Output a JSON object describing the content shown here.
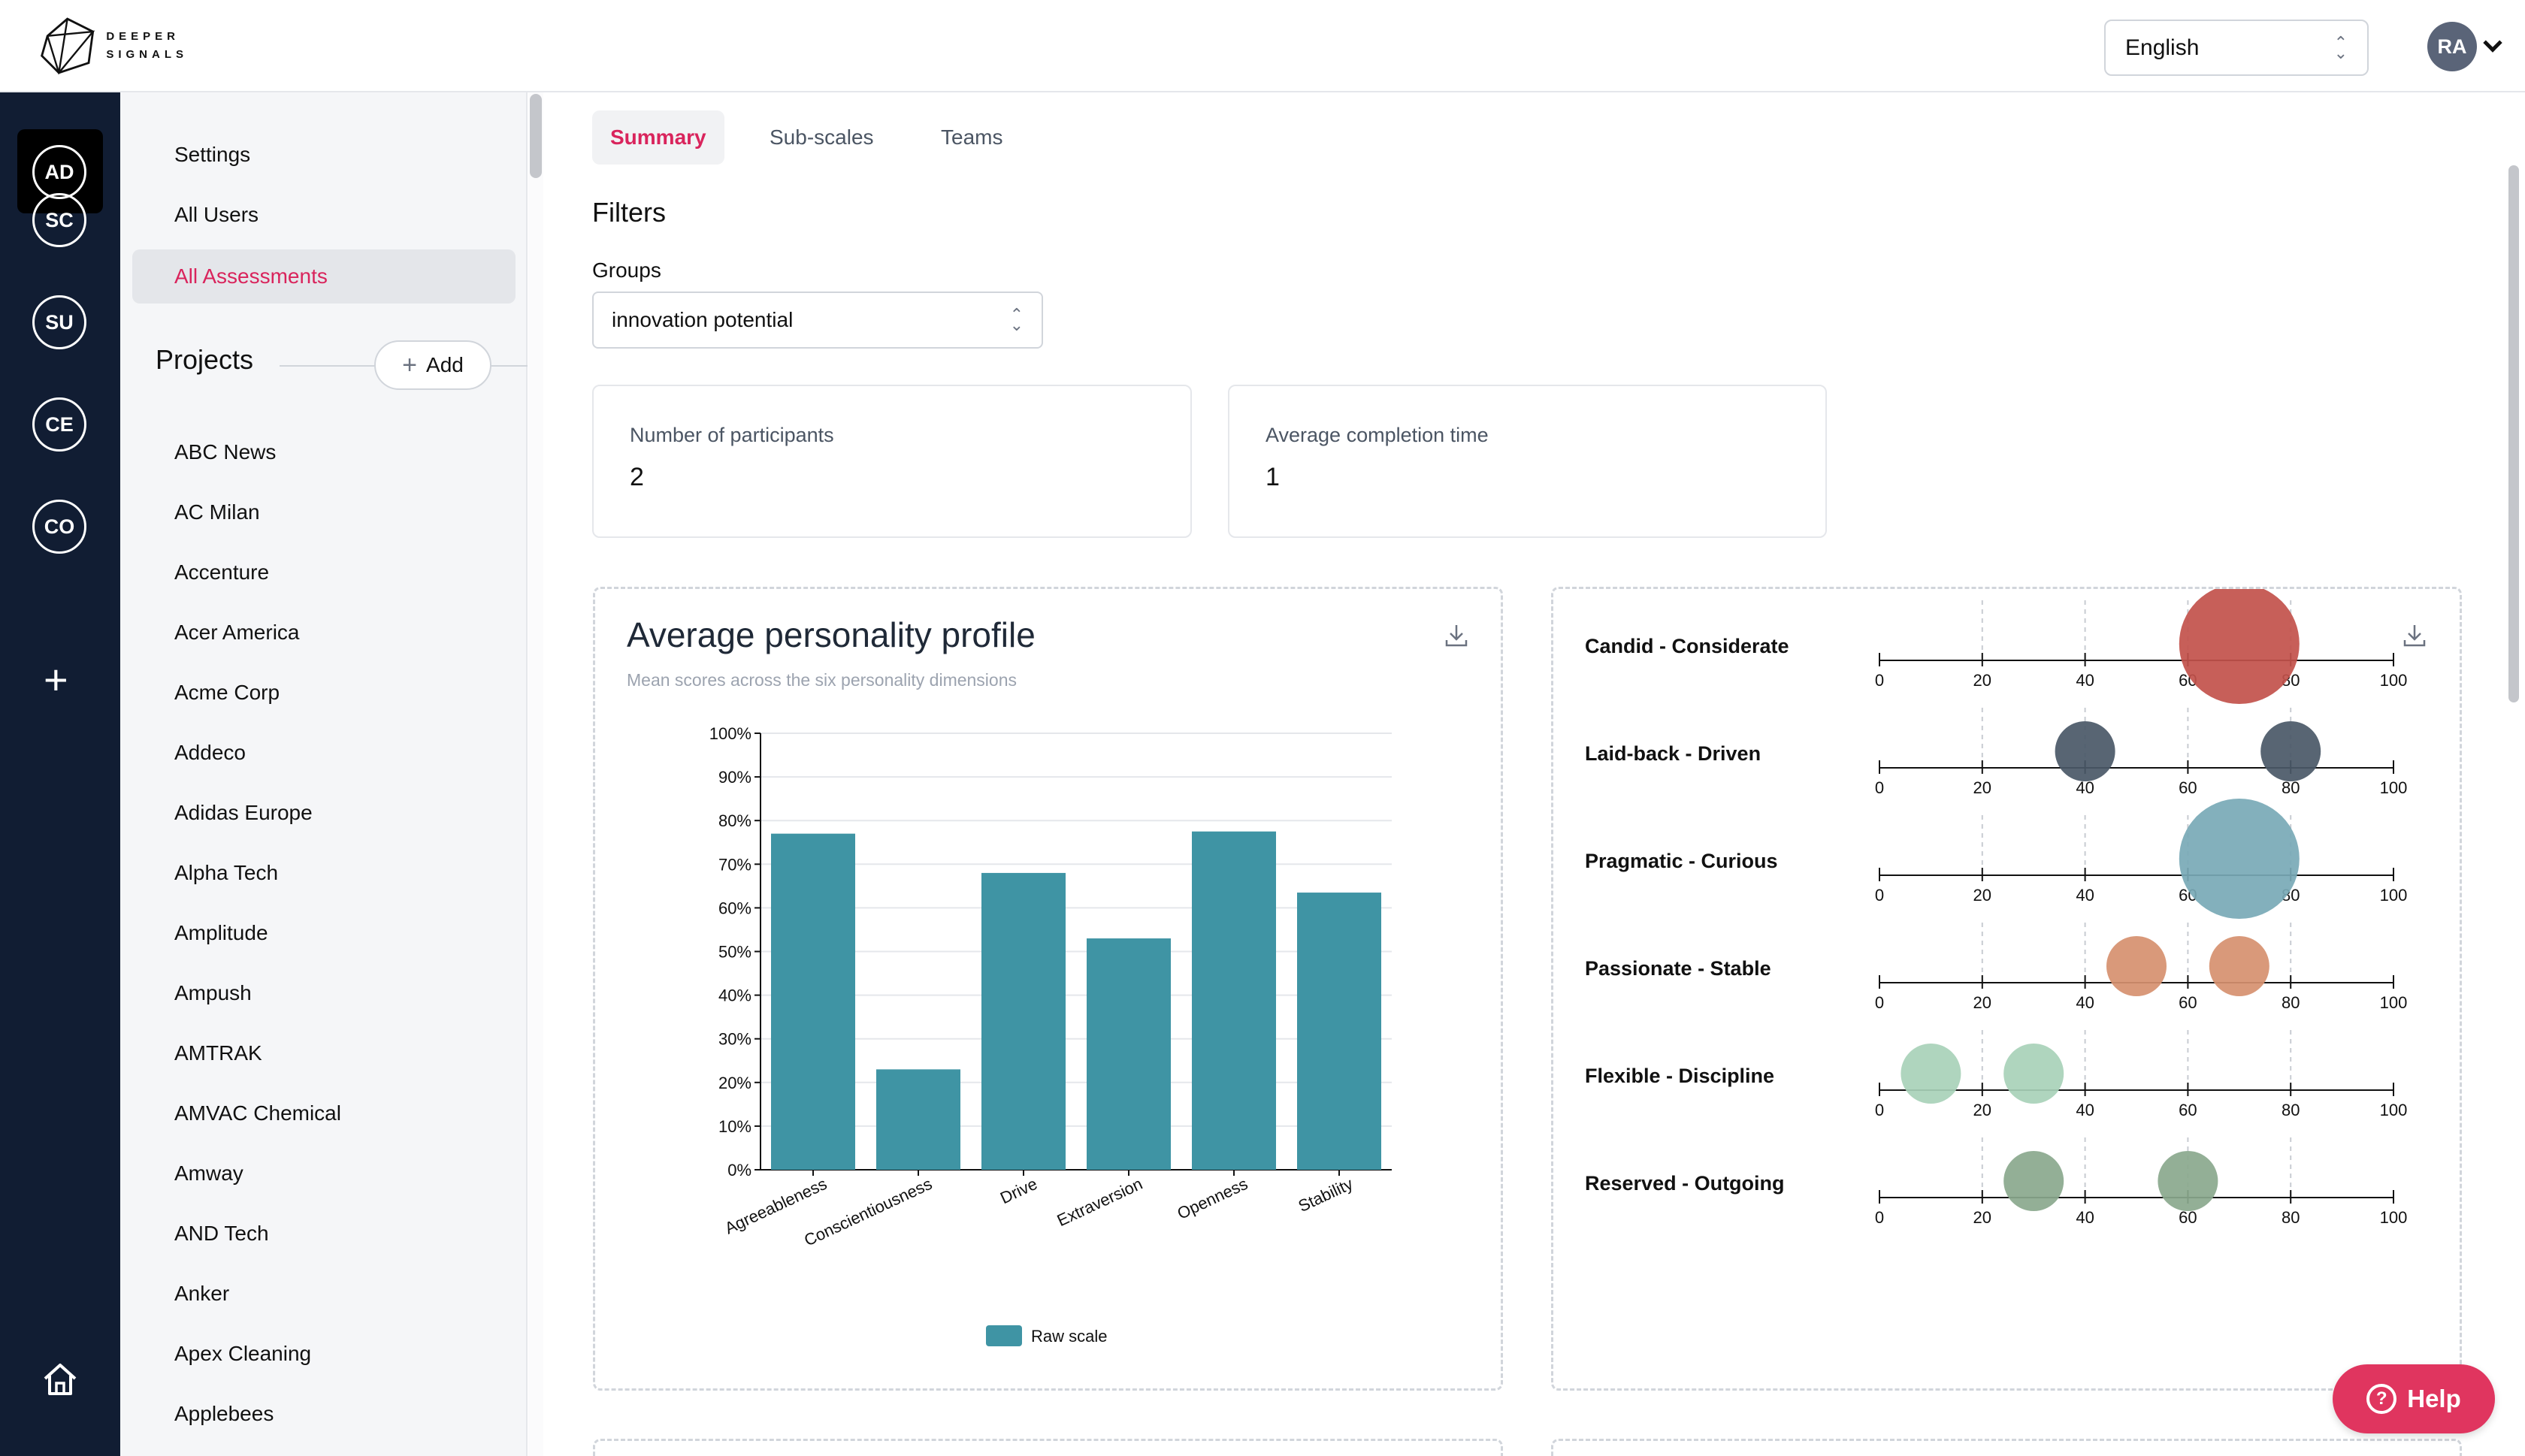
{
  "brand": {
    "line1": "DEEPER",
    "line2": "SIGNALS"
  },
  "header": {
    "language": "English",
    "user_initials": "RA"
  },
  "rail": {
    "items": [
      "AD",
      "SC",
      "SU",
      "CE",
      "CO"
    ],
    "active": "AD"
  },
  "sidebar": {
    "nav": [
      "Settings",
      "All Users",
      "All Assessments"
    ],
    "active_nav": "All Assessments",
    "projects_title": "Projects",
    "add_label": "Add",
    "projects": [
      "ABC News",
      "AC Milan",
      "Accenture",
      "Acer America",
      "Acme Corp",
      "Addeco",
      "Adidas Europe",
      "Alpha Tech",
      "Amplitude",
      "Ampush",
      "AMTRAK",
      "AMVAC Chemical",
      "Amway",
      "AND Tech",
      "Anker",
      "Apex Cleaning",
      "Applebees"
    ]
  },
  "tabs": [
    "Summary",
    "Sub-scales",
    "Teams"
  ],
  "active_tab": "Summary",
  "filters": {
    "title": "Filters",
    "groups_label": "Groups",
    "groups_value": "innovation potential"
  },
  "stats": [
    {
      "label": "Number of participants",
      "value": "2"
    },
    {
      "label": "Average completion time",
      "value": "1"
    }
  ],
  "bar_chart": {
    "title": "Average personality profile",
    "subtitle": "Mean scores across the six personality dimensions"
  },
  "help": {
    "label": "Help"
  },
  "colors": {
    "accent": "#d9245c",
    "bar": "#3f94a4",
    "rail": "#111d33",
    "help": "#e0355f"
  },
  "chart_data": [
    {
      "type": "bar",
      "title": "Average personality profile",
      "subtitle": "Mean scores across the six personality dimensions",
      "categories": [
        "Agreeableness",
        "Conscientiousness",
        "Drive",
        "Extraversion",
        "Openness",
        "Stability"
      ],
      "series": [
        {
          "name": "Raw scale",
          "values": [
            77,
            23,
            68,
            53,
            77.5,
            63.5
          ]
        }
      ],
      "ylim": [
        0,
        100
      ],
      "y_ticks": [
        "0%",
        "10%",
        "20%",
        "30%",
        "40%",
        "50%",
        "60%",
        "70%",
        "80%",
        "90%",
        "100%"
      ],
      "grid": true,
      "legend": "bottom"
    },
    {
      "type": "scatter",
      "xlim": [
        0,
        100
      ],
      "x_ticks": [
        0,
        20,
        40,
        60,
        80,
        100
      ],
      "rows": [
        {
          "label": "Candid - Considerate",
          "color": "#c2514b",
          "points": [
            {
              "x": 70,
              "size": 2
            }
          ]
        },
        {
          "label": "Laid-back - Driven",
          "color": "#4a5867",
          "points": [
            {
              "x": 40,
              "size": 1
            },
            {
              "x": 80,
              "size": 1
            }
          ]
        },
        {
          "label": "Pragmatic - Curious",
          "color": "#78a9b6",
          "points": [
            {
              "x": 70,
              "size": 2
            }
          ]
        },
        {
          "label": "Passionate - Stable",
          "color": "#d6906f",
          "points": [
            {
              "x": 50,
              "size": 1
            },
            {
              "x": 70,
              "size": 1
            }
          ]
        },
        {
          "label": "Flexible - Discipline",
          "color": "#a8d1b8",
          "points": [
            {
              "x": 10,
              "size": 1
            },
            {
              "x": 30,
              "size": 1
            }
          ]
        },
        {
          "label": "Reserved - Outgoing",
          "color": "#8aa88d",
          "points": [
            {
              "x": 30,
              "size": 1
            },
            {
              "x": 60,
              "size": 1
            }
          ]
        }
      ]
    }
  ]
}
